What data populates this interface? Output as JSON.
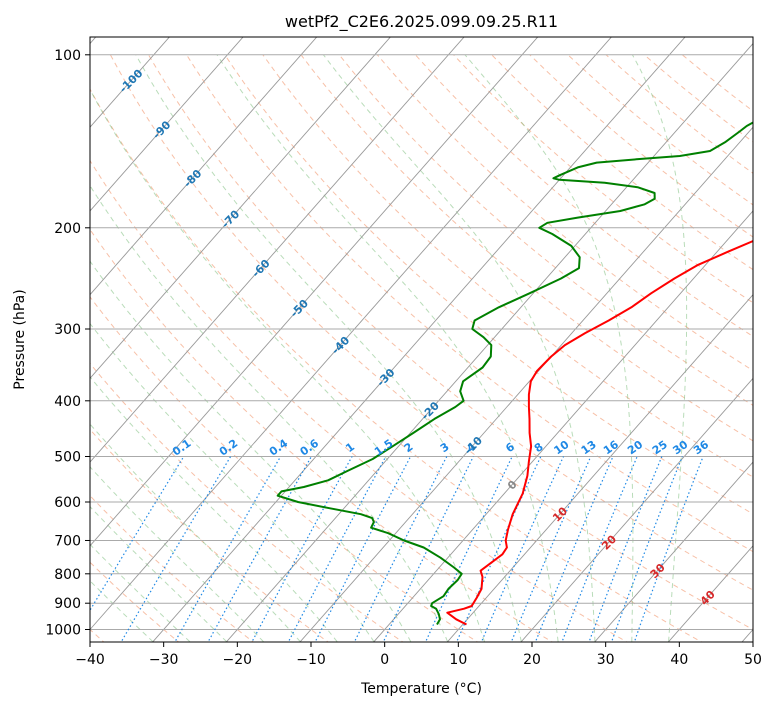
{
  "chart_data": {
    "type": "line",
    "title": "wetPf2_C2E6.2025.099.09.25.R11",
    "xlabel": "Temperature (°C)",
    "ylabel": "Pressure (hPa)",
    "xlim": [
      -40,
      50
    ],
    "ylim_hpa": [
      1050,
      100
    ],
    "y_scale": "log",
    "grid": true,
    "x_ticks": [
      -40,
      -30,
      -20,
      -10,
      0,
      10,
      20,
      30,
      40,
      50
    ],
    "x_tick_labels": [
      "−40",
      "−30",
      "−20",
      "−10",
      "0",
      "10",
      "20",
      "30",
      "40",
      "50"
    ],
    "y_ticks": [
      1000,
      900,
      800,
      700,
      600,
      500,
      400,
      300,
      200,
      100
    ],
    "y_tick_labels": [
      "1000",
      "900",
      "800",
      "700",
      "600",
      "500",
      "400",
      "300",
      "200",
      "100"
    ],
    "series": [
      {
        "role": "temperature",
        "color": "#ff0000",
        "points": [
          [
            10.5,
            980
          ],
          [
            8.5,
            960
          ],
          [
            6.5,
            935
          ],
          [
            8.3,
            920
          ],
          [
            9.0,
            910
          ],
          [
            8.7,
            880
          ],
          [
            8.3,
            850
          ],
          [
            7.0,
            810
          ],
          [
            6.0,
            790
          ],
          [
            7.0,
            740
          ],
          [
            6.8,
            720
          ],
          [
            5.8,
            700
          ],
          [
            4.8,
            670
          ],
          [
            3.6,
            630
          ],
          [
            2.5,
            580
          ],
          [
            1.0,
            540
          ],
          [
            -0.5,
            510
          ],
          [
            -2.0,
            480
          ],
          [
            -3.8,
            455
          ],
          [
            -5.5,
            430
          ],
          [
            -7.0,
            410
          ],
          [
            -8.5,
            390
          ],
          [
            -9.8,
            370
          ],
          [
            -10.2,
            355
          ],
          [
            -10.0,
            335
          ],
          [
            -9.5,
            320
          ],
          [
            -8.2,
            305
          ],
          [
            -6.5,
            290
          ],
          [
            -5.0,
            275
          ],
          [
            -4.0,
            260
          ],
          [
            -2.6,
            245
          ],
          [
            -1.0,
            232
          ],
          [
            1.5,
            220
          ],
          [
            3.8,
            210
          ],
          [
            5.8,
            200
          ],
          [
            7.5,
            190
          ],
          [
            9.2,
            180
          ],
          [
            11.0,
            172
          ],
          [
            12.8,
            164
          ],
          [
            14.2,
            156
          ],
          [
            14.4,
            148
          ],
          [
            15.2,
            140
          ],
          [
            16.8,
            132
          ],
          [
            18.5,
            124
          ],
          [
            20.0,
            117
          ],
          [
            21.0,
            112
          ],
          [
            21.8,
            106
          ],
          [
            22.8,
            100
          ]
        ]
      },
      {
        "role": "dewpoint",
        "color": "#008000",
        "points": [
          [
            6.5,
            980
          ],
          [
            6.3,
            960
          ],
          [
            5.5,
            940
          ],
          [
            4.5,
            920
          ],
          [
            3.5,
            910
          ],
          [
            3.3,
            900
          ],
          [
            4.0,
            875
          ],
          [
            3.8,
            850
          ],
          [
            4.0,
            820
          ],
          [
            3.8,
            800
          ],
          [
            2.0,
            780
          ],
          [
            -1.0,
            750
          ],
          [
            -4.5,
            720
          ],
          [
            -8.0,
            700
          ],
          [
            -11.0,
            680
          ],
          [
            -14.0,
            665
          ],
          [
            -14.3,
            650
          ],
          [
            -15.0,
            640
          ],
          [
            -17.0,
            630
          ],
          [
            -22.0,
            615
          ],
          [
            -27.0,
            600
          ],
          [
            -30.5,
            585
          ],
          [
            -30.5,
            575
          ],
          [
            -28.0,
            565
          ],
          [
            -25.5,
            550
          ],
          [
            -24.0,
            530
          ],
          [
            -22.0,
            505
          ],
          [
            -20.8,
            480
          ],
          [
            -19.6,
            455
          ],
          [
            -18.4,
            430
          ],
          [
            -17.0,
            410
          ],
          [
            -16.6,
            400
          ],
          [
            -18.2,
            385
          ],
          [
            -19.0,
            370
          ],
          [
            -18.0,
            350
          ],
          [
            -18.2,
            335
          ],
          [
            -19.5,
            320
          ],
          [
            -21.5,
            310
          ],
          [
            -24.0,
            300
          ],
          [
            -24.7,
            290
          ],
          [
            -23.0,
            275
          ],
          [
            -20.5,
            260
          ],
          [
            -18.0,
            245
          ],
          [
            -16.8,
            235
          ],
          [
            -18.0,
            225
          ],
          [
            -20.5,
            215
          ],
          [
            -24.5,
            205
          ],
          [
            -27.0,
            200
          ],
          [
            -26.5,
            196
          ],
          [
            -23.0,
            192
          ],
          [
            -18.0,
            187
          ],
          [
            -15.5,
            182
          ],
          [
            -14.8,
            178
          ],
          [
            -15.5,
            174
          ],
          [
            -18.5,
            170
          ],
          [
            -23.5,
            167
          ],
          [
            -30.0,
            165
          ],
          [
            -31.0,
            164
          ],
          [
            -30.5,
            162
          ],
          [
            -29.0,
            157
          ],
          [
            -27.0,
            154
          ],
          [
            -22.0,
            152
          ],
          [
            -16.5,
            150
          ],
          [
            -13.0,
            147
          ],
          [
            -12.0,
            142
          ],
          [
            -11.3,
            136
          ],
          [
            -11.0,
            133
          ],
          [
            -9.8,
            128
          ],
          [
            -8.5,
            124
          ],
          [
            -7.0,
            120
          ],
          [
            -6.0,
            118
          ],
          [
            -3.5,
            115
          ],
          [
            -1.0,
            112
          ],
          [
            1.0,
            109
          ],
          [
            1.5,
            106
          ],
          [
            1.8,
            103
          ],
          [
            2.2,
            100
          ]
        ]
      }
    ],
    "isotherm_labels": [
      "-100",
      "-90",
      "-80",
      "-70",
      "-60",
      "-50",
      "-40",
      "-30",
      "-20",
      "-10",
      "0",
      "10",
      "20",
      "30",
      "40"
    ],
    "mixing_ratio_labels": [
      "0.1",
      "0.2",
      "0.4",
      "0.6",
      "1",
      "1.5",
      "2",
      "3",
      "4",
      "6",
      "8",
      "10",
      "13",
      "16",
      "20",
      "25",
      "30",
      "36"
    ],
    "colors": {
      "dry_adiabat": "#f4a582",
      "moist_adiabat": "#7fbf7f",
      "mixing_ratio": "#1e88e5",
      "isotherm_label_cold": "#1f77b4",
      "isotherm_label_warm": "#d62728",
      "isotherm_label_zero": "#888888",
      "grid": "#aaaaaa",
      "isobar": "#aaaaaa",
      "skew_isotherm": "#999999"
    }
  }
}
